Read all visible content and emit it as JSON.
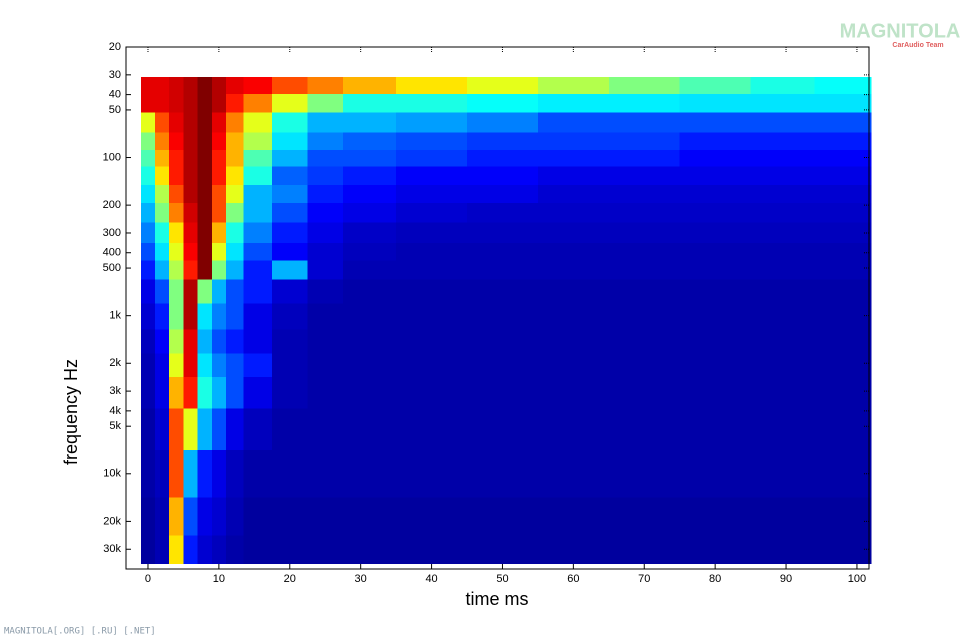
{
  "chart_data": {
    "type": "heatmap",
    "x_label": "time   ms",
    "y_label": "frequency   Hz",
    "watermark": "MAGNITOLA",
    "watermark_sub": "CarAudio Team",
    "footer": "MAGNITOLA[.ORG] [.RU] [.NET]",
    "x": [
      0,
      2,
      4,
      6,
      8,
      10,
      12,
      15,
      20,
      25,
      30,
      40,
      50,
      60,
      70,
      80,
      90,
      98
    ],
    "y": [
      35,
      45,
      60,
      80,
      100,
      130,
      170,
      220,
      300,
      400,
      500,
      700,
      1000,
      1500,
      2000,
      3000,
      5000,
      10000,
      20000,
      30000
    ],
    "z": [
      [
        0.9,
        0.9,
        0.92,
        0.95,
        1,
        0.95,
        0.9,
        0.88,
        0.8,
        0.75,
        0.7,
        0.65,
        0.6,
        0.55,
        0.5,
        0.45,
        0.4,
        0.38
      ],
      [
        0.9,
        0.9,
        0.92,
        0.95,
        1,
        0.95,
        0.85,
        0.75,
        0.6,
        0.5,
        0.4,
        0.4,
        0.38,
        0.36,
        0.36,
        0.35,
        0.35,
        0.35
      ],
      [
        0.6,
        0.8,
        0.9,
        0.95,
        1,
        0.9,
        0.75,
        0.6,
        0.4,
        0.3,
        0.3,
        0.28,
        0.25,
        0.2,
        0.2,
        0.2,
        0.2,
        0.2
      ],
      [
        0.5,
        0.75,
        0.88,
        0.95,
        1,
        0.88,
        0.7,
        0.55,
        0.35,
        0.25,
        0.22,
        0.2,
        0.18,
        0.18,
        0.18,
        0.15,
        0.15,
        0.15
      ],
      [
        0.45,
        0.7,
        0.85,
        0.95,
        1,
        0.85,
        0.7,
        0.45,
        0.3,
        0.2,
        0.2,
        0.18,
        0.15,
        0.15,
        0.15,
        0.12,
        0.12,
        0.12
      ],
      [
        0.4,
        0.65,
        0.85,
        0.95,
        1,
        0.85,
        0.65,
        0.4,
        0.22,
        0.18,
        0.15,
        0.12,
        0.12,
        0.1,
        0.1,
        0.1,
        0.1,
        0.1
      ],
      [
        0.35,
        0.55,
        0.8,
        0.95,
        1,
        0.8,
        0.6,
        0.3,
        0.25,
        0.15,
        0.12,
        0.1,
        0.1,
        0.08,
        0.08,
        0.08,
        0.08,
        0.08
      ],
      [
        0.3,
        0.5,
        0.75,
        0.92,
        1,
        0.8,
        0.5,
        0.3,
        0.2,
        0.12,
        0.1,
        0.08,
        0.07,
        0.07,
        0.07,
        0.07,
        0.07,
        0.07
      ],
      [
        0.25,
        0.4,
        0.65,
        0.9,
        1,
        0.7,
        0.4,
        0.25,
        0.15,
        0.1,
        0.07,
        0.06,
        0.06,
        0.06,
        0.06,
        0.06,
        0.06,
        0.06
      ],
      [
        0.2,
        0.35,
        0.6,
        0.88,
        1,
        0.6,
        0.35,
        0.2,
        0.12,
        0.08,
        0.06,
        0.05,
        0.05,
        0.05,
        0.05,
        0.05,
        0.05,
        0.05
      ],
      [
        0.15,
        0.3,
        0.55,
        0.85,
        1,
        0.5,
        0.3,
        0.15,
        0.3,
        0.08,
        0.05,
        0.05,
        0.05,
        0.05,
        0.05,
        0.05,
        0.05,
        0.05
      ],
      [
        0.1,
        0.2,
        0.5,
        0.95,
        0.5,
        0.3,
        0.2,
        0.15,
        0.08,
        0.05,
        0.04,
        0.04,
        0.04,
        0.04,
        0.04,
        0.04,
        0.04,
        0.04
      ],
      [
        0.08,
        0.15,
        0.5,
        0.95,
        0.35,
        0.25,
        0.2,
        0.1,
        0.06,
        0.04,
        0.04,
        0.04,
        0.04,
        0.04,
        0.04,
        0.04,
        0.04,
        0.04
      ],
      [
        0.06,
        0.12,
        0.55,
        0.9,
        0.3,
        0.2,
        0.15,
        0.1,
        0.05,
        0.04,
        0.04,
        0.04,
        0.04,
        0.04,
        0.04,
        0.04,
        0.04,
        0.04
      ],
      [
        0.05,
        0.1,
        0.6,
        0.9,
        0.35,
        0.25,
        0.2,
        0.15,
        0.05,
        0.04,
        0.04,
        0.04,
        0.04,
        0.04,
        0.04,
        0.04,
        0.04,
        0.04
      ],
      [
        0.05,
        0.1,
        0.7,
        0.85,
        0.4,
        0.3,
        0.2,
        0.1,
        0.05,
        0.04,
        0.04,
        0.04,
        0.04,
        0.04,
        0.04,
        0.04,
        0.04,
        0.04
      ],
      [
        0.04,
        0.08,
        0.8,
        0.6,
        0.3,
        0.2,
        0.1,
        0.06,
        0.04,
        0.04,
        0.04,
        0.04,
        0.04,
        0.04,
        0.04,
        0.04,
        0.04,
        0.04
      ],
      [
        0.04,
        0.06,
        0.8,
        0.3,
        0.15,
        0.1,
        0.06,
        0.04,
        0.04,
        0.04,
        0.04,
        0.04,
        0.04,
        0.04,
        0.04,
        0.04,
        0.04,
        0.04
      ],
      [
        0.03,
        0.05,
        0.7,
        0.2,
        0.1,
        0.08,
        0.05,
        0.03,
        0.03,
        0.03,
        0.03,
        0.03,
        0.03,
        0.03,
        0.03,
        0.03,
        0.03,
        0.03
      ],
      [
        0.03,
        0.05,
        0.65,
        0.15,
        0.08,
        0.06,
        0.04,
        0.03,
        0.03,
        0.03,
        0.03,
        0.03,
        0.03,
        0.03,
        0.03,
        0.03,
        0.03,
        0.03
      ]
    ],
    "colormap": "jet",
    "xlim": [
      -3.1,
      101.7
    ],
    "xticks": [
      0,
      10,
      20,
      30,
      40,
      50,
      60,
      70,
      80,
      90,
      100
    ],
    "ylim": [
      20,
      40000
    ],
    "y_log": true,
    "y_reversed": true,
    "yticks": [
      20,
      30,
      40,
      50,
      100,
      200,
      300,
      400,
      500,
      {
        "value": 1000,
        "label": "1k"
      },
      {
        "value": 2000,
        "label": "2k"
      },
      {
        "value": 3000,
        "label": "3k"
      },
      {
        "value": 4000,
        "label": "4k"
      },
      {
        "value": 5000,
        "label": "5k"
      },
      {
        "value": 10000,
        "label": "10k"
      },
      {
        "value": 20000,
        "label": "20k"
      },
      {
        "value": 30000,
        "label": "30k"
      }
    ],
    "grid": false
  }
}
